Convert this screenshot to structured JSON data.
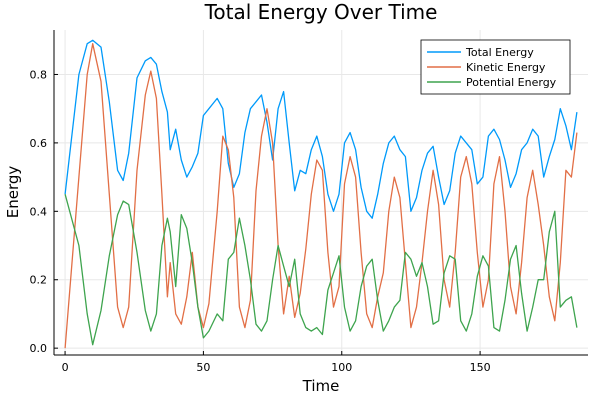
{
  "chart_data": {
    "type": "line",
    "title": "Total Energy Over Time",
    "xlabel": "Time",
    "ylabel": "Energy",
    "xlim": [
      -4,
      189
    ],
    "ylim": [
      -0.02,
      0.93
    ],
    "xticks": [
      0,
      50,
      100,
      150
    ],
    "yticks": [
      0.0,
      0.2,
      0.4,
      0.6,
      0.8
    ],
    "ytick_labels": [
      "0.0",
      "0.2",
      "0.4",
      "0.6",
      "0.8"
    ],
    "grid": true,
    "legend_position": "top-right",
    "x": [
      0,
      5,
      8,
      10,
      13,
      16,
      19,
      21,
      23,
      26,
      29,
      31,
      33,
      35,
      37,
      38,
      40,
      42,
      44,
      46,
      48,
      50,
      52,
      55,
      57,
      59,
      61,
      63,
      65,
      67,
      69,
      71,
      73,
      75,
      77,
      79,
      81,
      83,
      85,
      87,
      89,
      91,
      93,
      95,
      97,
      99,
      101,
      103,
      105,
      107,
      109,
      111,
      113,
      115,
      117,
      119,
      121,
      123,
      125,
      127,
      129,
      131,
      133,
      135,
      137,
      139,
      141,
      143,
      145,
      147,
      149,
      151,
      153,
      155,
      157,
      159,
      161,
      163,
      165,
      167,
      169,
      171,
      173,
      175,
      177,
      179,
      181,
      183,
      185
    ],
    "series": [
      {
        "name": "Total Energy",
        "color": "#009AFA",
        "values": [
          0.45,
          0.8,
          0.89,
          0.9,
          0.88,
          0.72,
          0.52,
          0.49,
          0.57,
          0.79,
          0.84,
          0.85,
          0.83,
          0.75,
          0.69,
          0.58,
          0.64,
          0.55,
          0.5,
          0.53,
          0.57,
          0.68,
          0.7,
          0.73,
          0.7,
          0.54,
          0.47,
          0.51,
          0.63,
          0.7,
          0.72,
          0.74,
          0.66,
          0.55,
          0.7,
          0.75,
          0.6,
          0.46,
          0.52,
          0.51,
          0.58,
          0.62,
          0.56,
          0.45,
          0.4,
          0.45,
          0.6,
          0.63,
          0.58,
          0.47,
          0.4,
          0.38,
          0.45,
          0.54,
          0.6,
          0.62,
          0.58,
          0.56,
          0.4,
          0.44,
          0.52,
          0.57,
          0.59,
          0.5,
          0.42,
          0.46,
          0.57,
          0.62,
          0.6,
          0.58,
          0.48,
          0.5,
          0.62,
          0.64,
          0.61,
          0.55,
          0.47,
          0.51,
          0.58,
          0.6,
          0.64,
          0.62,
          0.5,
          0.56,
          0.61,
          0.7,
          0.65,
          0.58,
          0.69
        ]
      },
      {
        "name": "Kinetic Energy",
        "color": "#E26F46",
        "values": [
          0.0,
          0.5,
          0.8,
          0.89,
          0.78,
          0.45,
          0.12,
          0.06,
          0.12,
          0.52,
          0.74,
          0.81,
          0.73,
          0.45,
          0.15,
          0.25,
          0.1,
          0.07,
          0.15,
          0.28,
          0.12,
          0.06,
          0.13,
          0.4,
          0.62,
          0.58,
          0.44,
          0.12,
          0.06,
          0.14,
          0.46,
          0.62,
          0.7,
          0.6,
          0.3,
          0.1,
          0.21,
          0.09,
          0.16,
          0.29,
          0.45,
          0.55,
          0.52,
          0.28,
          0.12,
          0.18,
          0.48,
          0.56,
          0.5,
          0.28,
          0.1,
          0.06,
          0.15,
          0.22,
          0.4,
          0.5,
          0.44,
          0.25,
          0.06,
          0.12,
          0.25,
          0.4,
          0.52,
          0.42,
          0.2,
          0.12,
          0.28,
          0.5,
          0.56,
          0.48,
          0.28,
          0.12,
          0.2,
          0.48,
          0.56,
          0.4,
          0.18,
          0.1,
          0.25,
          0.44,
          0.52,
          0.42,
          0.3,
          0.15,
          0.08,
          0.25,
          0.52,
          0.5,
          0.63
        ]
      },
      {
        "name": "Potential Energy",
        "color": "#3EA44E",
        "values": [
          0.45,
          0.3,
          0.1,
          0.01,
          0.11,
          0.27,
          0.39,
          0.43,
          0.42,
          0.28,
          0.11,
          0.05,
          0.1,
          0.3,
          0.38,
          0.34,
          0.18,
          0.39,
          0.35,
          0.25,
          0.12,
          0.03,
          0.05,
          0.1,
          0.08,
          0.26,
          0.28,
          0.38,
          0.3,
          0.2,
          0.07,
          0.05,
          0.08,
          0.2,
          0.3,
          0.24,
          0.18,
          0.26,
          0.1,
          0.06,
          0.05,
          0.06,
          0.04,
          0.17,
          0.22,
          0.27,
          0.12,
          0.05,
          0.08,
          0.18,
          0.24,
          0.26,
          0.14,
          0.05,
          0.08,
          0.12,
          0.14,
          0.28,
          0.26,
          0.21,
          0.25,
          0.18,
          0.07,
          0.08,
          0.22,
          0.27,
          0.26,
          0.08,
          0.05,
          0.1,
          0.21,
          0.27,
          0.24,
          0.06,
          0.05,
          0.14,
          0.26,
          0.3,
          0.16,
          0.05,
          0.12,
          0.2,
          0.2,
          0.34,
          0.4,
          0.12,
          0.14,
          0.15,
          0.06
        ]
      }
    ]
  }
}
